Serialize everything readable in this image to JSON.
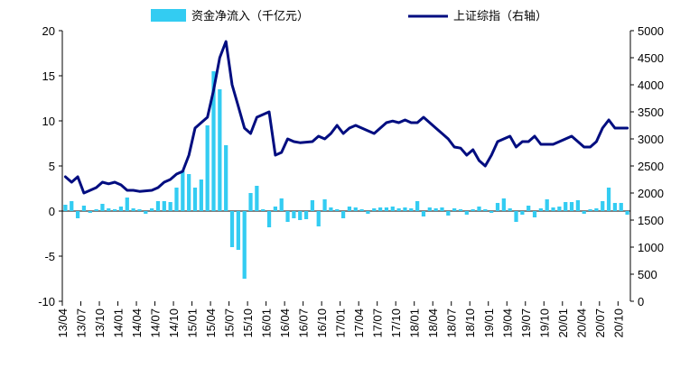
{
  "chart_data": {
    "type": "bar+line",
    "legend_position": "top",
    "legend": {
      "bar_label": "资金净流入（千亿元）",
      "line_label": "上证综指（右轴）"
    },
    "colors": {
      "bar": "#33CCF2",
      "line": "#000D80"
    },
    "ylim_left": [
      -10,
      20
    ],
    "yticks_left": [
      "-10",
      "-5",
      "0",
      "5",
      "10",
      "15",
      "20"
    ],
    "ylim_right": [
      0,
      5000
    ],
    "yticks_right": [
      "0",
      "500",
      "1000",
      "1500",
      "2000",
      "2500",
      "3000",
      "3500",
      "4000",
      "4500",
      "5000"
    ],
    "x_tick_labels": [
      "13/04",
      "13/07",
      "13/10",
      "14/01",
      "14/04",
      "14/07",
      "14/10",
      "15/01",
      "15/04",
      "15/07",
      "15/10",
      "16/01",
      "16/04",
      "16/07",
      "16/10",
      "17/01",
      "17/04",
      "17/07",
      "17/10",
      "18/01",
      "18/04",
      "18/07",
      "18/10",
      "19/01",
      "19/04",
      "19/07",
      "19/10",
      "20/01",
      "20/04",
      "20/07",
      "20/10"
    ],
    "series": [
      {
        "name": "资金净流入（千亿元）",
        "type": "bar",
        "axis": "left",
        "values": [
          0.7,
          1.1,
          -0.8,
          0.6,
          -0.2,
          0.2,
          0.8,
          0.3,
          0.2,
          0.5,
          1.5,
          0.3,
          0.2,
          -0.3,
          0.3,
          1.1,
          1.1,
          1.0,
          2.6,
          4.5,
          4.1,
          2.6,
          3.5,
          9.5,
          15.5,
          13.5,
          7.3,
          -4.0,
          -4.3,
          -7.5,
          2.0,
          2.8,
          0.2,
          -1.8,
          0.5,
          1.4,
          -1.2,
          -0.8,
          -1.0,
          -0.9,
          1.2,
          -1.7,
          1.3,
          0.4,
          0.2,
          -0.8,
          0.5,
          0.4,
          0.2,
          -0.3,
          0.3,
          0.4,
          0.4,
          0.5,
          0.3,
          0.4,
          0.3,
          1.1,
          -0.6,
          0.4,
          0.3,
          0.4,
          -0.5,
          0.3,
          0.2,
          -0.4,
          0.2,
          0.5,
          0.2,
          -0.2,
          0.9,
          1.4,
          0.3,
          -1.2,
          -0.4,
          0.6,
          -0.7,
          0.3,
          1.3,
          0.4,
          0.5,
          1.0,
          1.0,
          1.2,
          -0.3,
          0.2,
          0.3,
          1.1,
          2.6,
          0.9,
          0.9,
          -0.4
        ]
      },
      {
        "name": "上证综指（右轴）",
        "type": "line",
        "axis": "right",
        "values": [
          2300,
          2200,
          2300,
          2000,
          2050,
          2100,
          2200,
          2170,
          2200,
          2150,
          2050,
          2050,
          2030,
          2040,
          2050,
          2100,
          2200,
          2250,
          2350,
          2400,
          2700,
          3200,
          3300,
          3400,
          3900,
          4500,
          4800,
          4000,
          3600,
          3200,
          3100,
          3400,
          3450,
          3500,
          2700,
          2750,
          3000,
          2950,
          2930,
          2940,
          2950,
          3050,
          3000,
          3100,
          3250,
          3100,
          3200,
          3250,
          3200,
          3150,
          3100,
          3200,
          3300,
          3330,
          3300,
          3350,
          3300,
          3300,
          3400,
          3300,
          3200,
          3100,
          3000,
          2850,
          2830,
          2700,
          2800,
          2600,
          2500,
          2700,
          2950,
          3000,
          3050,
          2850,
          2950,
          2950,
          3050,
          2900,
          2900,
          2900,
          2950,
          3000,
          3050,
          2950,
          2850,
          2850,
          2950,
          3200,
          3350,
          3200,
          3200,
          3200
        ]
      }
    ]
  }
}
